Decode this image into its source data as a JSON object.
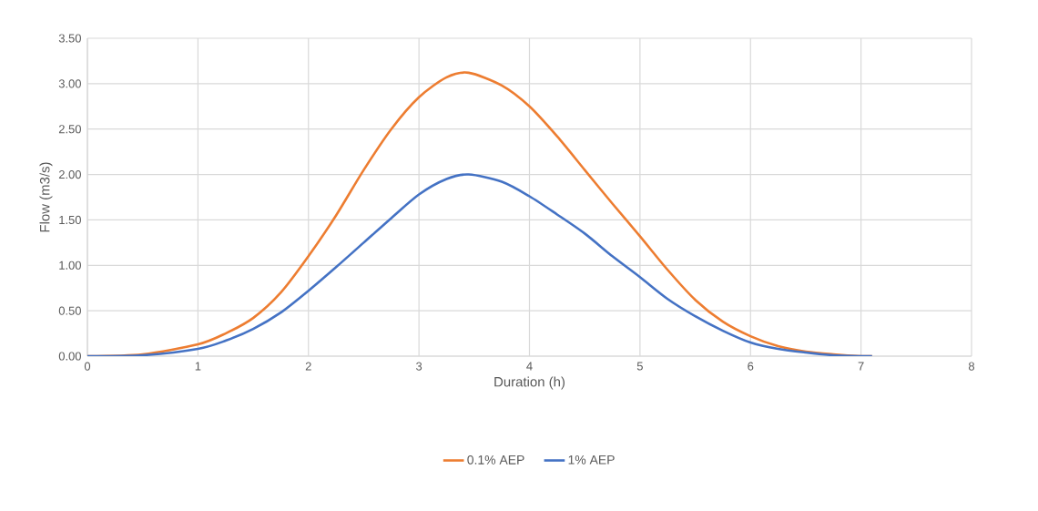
{
  "chart_data": {
    "type": "line",
    "xlabel": "Duration (h)",
    "ylabel": "Flow (m3/s)",
    "x": [
      0,
      0.5,
      1,
      1.25,
      1.5,
      1.75,
      2,
      2.25,
      2.5,
      2.75,
      3,
      3.25,
      3.45,
      3.75,
      4,
      4.25,
      4.5,
      4.75,
      5,
      5.25,
      5.5,
      5.75,
      6,
      6.25,
      6.5,
      6.75,
      7,
      7.1
    ],
    "series": [
      {
        "name": "0.1% AEP",
        "color": "#ed7d31",
        "values": [
          0,
          0.02,
          0.13,
          0.25,
          0.42,
          0.7,
          1.1,
          1.55,
          2.05,
          2.5,
          2.85,
          3.07,
          3.12,
          2.98,
          2.75,
          2.42,
          2.05,
          1.68,
          1.32,
          0.95,
          0.62,
          0.38,
          0.22,
          0.11,
          0.05,
          0.02,
          0.0,
          0.0
        ]
      },
      {
        "name": "1% AEP",
        "color": "#4472c4",
        "values": [
          0,
          0.01,
          0.08,
          0.17,
          0.3,
          0.48,
          0.72,
          0.98,
          1.25,
          1.52,
          1.78,
          1.95,
          2.0,
          1.92,
          1.76,
          1.56,
          1.35,
          1.1,
          0.87,
          0.63,
          0.44,
          0.28,
          0.15,
          0.08,
          0.04,
          0.01,
          0.0,
          0.0
        ]
      }
    ],
    "xlim": [
      0,
      8
    ],
    "ylim": [
      0,
      3.5
    ],
    "xticks": [
      0,
      1,
      2,
      3,
      4,
      5,
      6,
      7,
      8
    ],
    "yticks": [
      {
        "value": 0,
        "label": "0.00"
      },
      {
        "value": 0.5,
        "label": "0.50"
      },
      {
        "value": 1,
        "label": "1.00"
      },
      {
        "value": 1.5,
        "label": "1.50"
      },
      {
        "value": 2,
        "label": "2.00"
      },
      {
        "value": 2.5,
        "label": "2.50"
      },
      {
        "value": 3,
        "label": "3.00"
      },
      {
        "value": 3.5,
        "label": "3.50"
      }
    ],
    "grid": true,
    "legend": "bottom",
    "marker": "none",
    "line_style": "solid"
  }
}
